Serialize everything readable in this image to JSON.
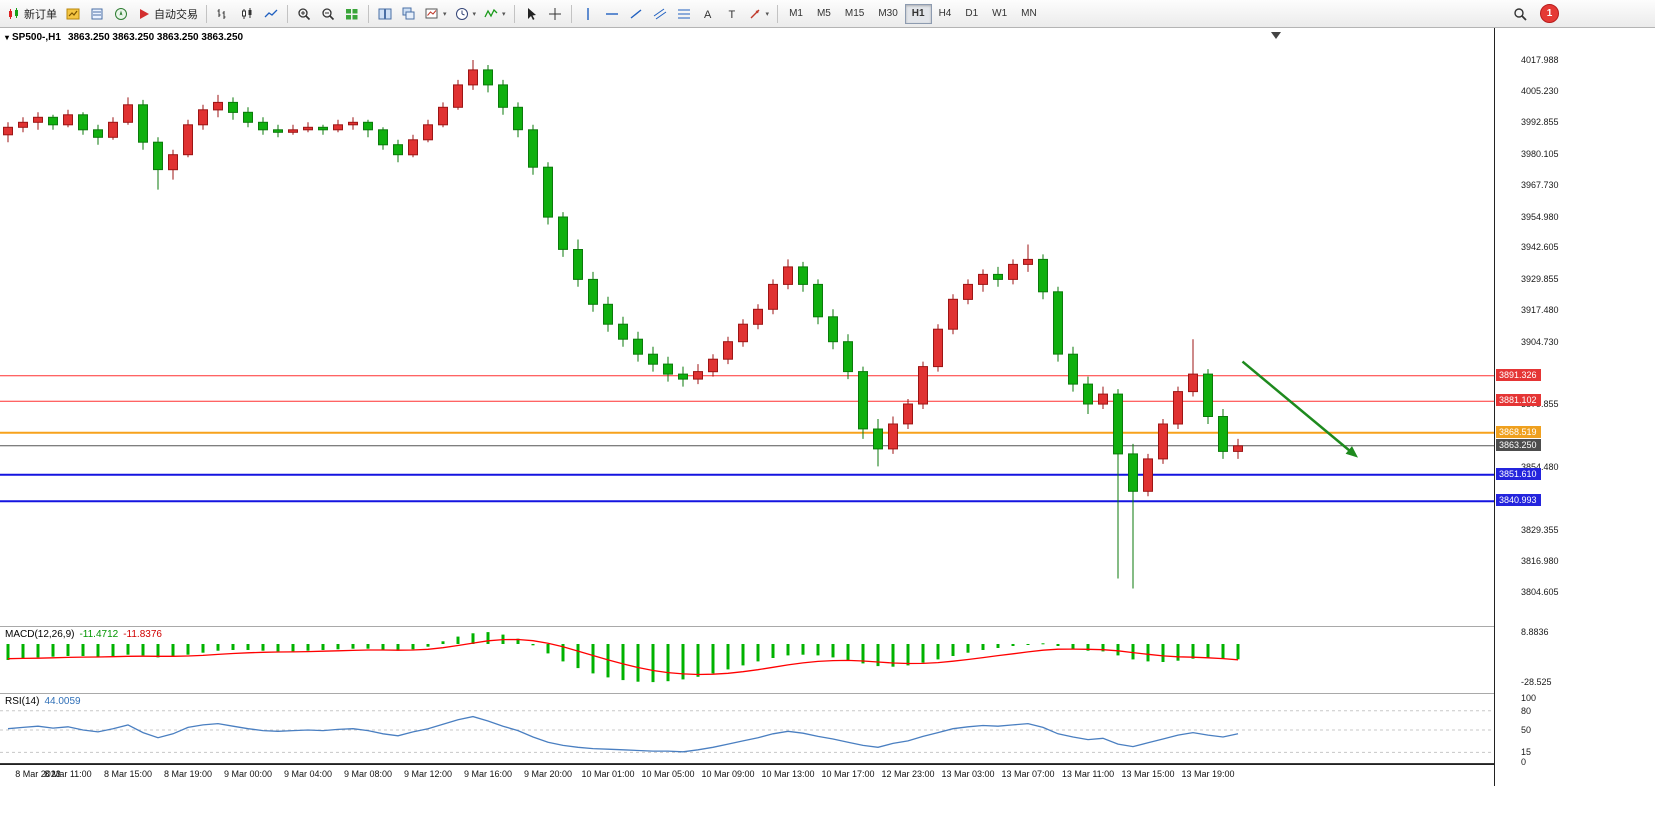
{
  "toolbar": {
    "groups": [
      {
        "items": [
          {
            "name": "new-order",
            "label": "新订单",
            "icon": "candles"
          },
          {
            "name": "market-watch",
            "icon": "market-watch"
          },
          {
            "name": "data-window",
            "icon": "data-window"
          },
          {
            "name": "navigator",
            "icon": "navigator"
          },
          {
            "name": "auto-trading",
            "label": "自动交易",
            "icon": "play"
          }
        ]
      },
      {
        "items": [
          {
            "name": "bar-chart",
            "icon": "bars"
          },
          {
            "name": "candlestick-chart",
            "icon": "candle"
          },
          {
            "name": "line-chart",
            "icon": "line"
          }
        ]
      },
      {
        "items": [
          {
            "name": "zoom-in",
            "icon": "zoom-in"
          },
          {
            "name": "zoom-out",
            "icon": "zoom-out"
          },
          {
            "name": "new-window",
            "icon": "grid"
          }
        ]
      },
      {
        "items": [
          {
            "name": "tile-windows",
            "icon": "tile"
          },
          {
            "name": "cascade-windows",
            "icon": "cascade"
          },
          {
            "name": "chart-template",
            "icon": "chart-caret",
            "caret": true
          },
          {
            "name": "period-selector",
            "icon": "clock",
            "caret": true
          },
          {
            "name": "indicators",
            "icon": "indicator",
            "caret": true
          }
        ]
      },
      {
        "items": [
          {
            "name": "cursor",
            "icon": "cursor"
          },
          {
            "name": "crosshair",
            "icon": "crosshair"
          }
        ]
      },
      {
        "items": [
          {
            "name": "vertical-line",
            "icon": "vline"
          },
          {
            "name": "horizontal-line",
            "icon": "hline"
          },
          {
            "name": "trendline",
            "icon": "trend"
          },
          {
            "name": "equidistant-channel",
            "icon": "channel"
          },
          {
            "name": "fibonacci",
            "icon": "fibo"
          },
          {
            "name": "text",
            "icon": "text"
          },
          {
            "name": "text-label",
            "icon": "label"
          },
          {
            "name": "shapes",
            "icon": "arrowshape",
            "caret": true
          }
        ]
      }
    ],
    "timeframes": [
      "M1",
      "M5",
      "M15",
      "M30",
      "H1",
      "H4",
      "D1",
      "W1",
      "MN"
    ],
    "active_timeframe": "H1",
    "notification_badge": "1"
  },
  "chart": {
    "symbol_period": "SP500-,H1",
    "ohlc": "3863.250 3863.250 3863.250 3863.250"
  },
  "chart_data": {
    "type": "candlestick",
    "symbol": "SP500-",
    "timeframe": "H1",
    "y_scale": {
      "p_top": 4017.988,
      "p_bottom": 3804.605
    },
    "price_axis_labels": [
      "4017.988",
      "4005.230",
      "3992.855",
      "3980.105",
      "3967.730",
      "3954.980",
      "3942.605",
      "3929.855",
      "3917.480",
      "3904.730",
      "3879.855",
      "3854.480",
      "3829.355",
      "3816.980",
      "3804.605"
    ],
    "price_badges": [
      {
        "text": "3891.326",
        "price": 3891.326,
        "bg": "#e53535",
        "line_color": "#ff3030",
        "line_width": 1
      },
      {
        "text": "3881.102",
        "price": 3881.102,
        "bg": "#e53535",
        "line_color": "#ff3030",
        "line_width": 1
      },
      {
        "text": "3868.519",
        "price": 3868.519,
        "bg": "#efa01e",
        "line_color": "#f7a21c",
        "line_width": 2
      },
      {
        "text": "3863.250",
        "price": 3863.25,
        "bg": "#4d4d4d",
        "line_color": "#555555",
        "line_width": 1
      },
      {
        "text": "3851.610",
        "price": 3851.61,
        "bg": "#2424dd",
        "line_color": "#1414e0",
        "line_width": 2
      },
      {
        "text": "3840.993",
        "price": 3840.993,
        "bg": "#2424dd",
        "line_color": "#1414e0",
        "line_width": 2
      }
    ],
    "candles": [
      [
        3988,
        3993,
        3985,
        3991
      ],
      [
        3991,
        3995,
        3989,
        3993
      ],
      [
        3993,
        3997,
        3990,
        3995
      ],
      [
        3995,
        3996,
        3990,
        3992
      ],
      [
        3992,
        3998,
        3991,
        3996
      ],
      [
        3996,
        3997,
        3988,
        3990
      ],
      [
        3990,
        3992,
        3984,
        3987
      ],
      [
        3987,
        3995,
        3986,
        3993
      ],
      [
        3993,
        4003,
        3992,
        4000
      ],
      [
        4000,
        4002,
        3982,
        3985
      ],
      [
        3985,
        3987,
        3966,
        3974
      ],
      [
        3974,
        3982,
        3970,
        3980
      ],
      [
        3980,
        3994,
        3979,
        3992
      ],
      [
        3992,
        4000,
        3990,
        3998
      ],
      [
        3998,
        4004,
        3995,
        4001
      ],
      [
        4001,
        4003,
        3994,
        3997
      ],
      [
        3997,
        3999,
        3991,
        3993
      ],
      [
        3993,
        3995,
        3988,
        3990
      ],
      [
        3990,
        3992,
        3987,
        3989
      ],
      [
        3989,
        3992,
        3988,
        3990
      ],
      [
        3990,
        3993,
        3989,
        3991
      ],
      [
        3991,
        3992,
        3988,
        3990
      ],
      [
        3990,
        3994,
        3989,
        3992
      ],
      [
        3992,
        3995,
        3990,
        3993
      ],
      [
        3993,
        3994,
        3987,
        3990
      ],
      [
        3990,
        3991,
        3982,
        3984
      ],
      [
        3984,
        3986,
        3977,
        3980
      ],
      [
        3980,
        3988,
        3979,
        3986
      ],
      [
        3986,
        3994,
        3985,
        3992
      ],
      [
        3992,
        4001,
        3991,
        3999
      ],
      [
        3999,
        4010,
        3998,
        4008
      ],
      [
        4008,
        4018,
        4006,
        4014
      ],
      [
        4014,
        4016,
        4005,
        4008
      ],
      [
        4008,
        4010,
        3996,
        3999
      ],
      [
        3999,
        4001,
        3987,
        3990
      ],
      [
        3990,
        3992,
        3972,
        3975
      ],
      [
        3975,
        3977,
        3952,
        3955
      ],
      [
        3955,
        3957,
        3939,
        3942
      ],
      [
        3942,
        3946,
        3927,
        3930
      ],
      [
        3930,
        3933,
        3917,
        3920
      ],
      [
        3920,
        3923,
        3909,
        3912
      ],
      [
        3912,
        3915,
        3903,
        3906
      ],
      [
        3906,
        3909,
        3897,
        3900
      ],
      [
        3900,
        3903,
        3893,
        3896
      ],
      [
        3896,
        3899,
        3889,
        3892
      ],
      [
        3892,
        3895,
        3887,
        3890
      ],
      [
        3890,
        3896,
        3888,
        3893
      ],
      [
        3893,
        3900,
        3891,
        3898
      ],
      [
        3898,
        3907,
        3896,
        3905
      ],
      [
        3905,
        3914,
        3903,
        3912
      ],
      [
        3912,
        3920,
        3910,
        3918
      ],
      [
        3918,
        3930,
        3916,
        3928
      ],
      [
        3928,
        3938,
        3926,
        3935
      ],
      [
        3935,
        3937,
        3925,
        3928
      ],
      [
        3928,
        3930,
        3912,
        3915
      ],
      [
        3915,
        3918,
        3902,
        3905
      ],
      [
        3905,
        3908,
        3890,
        3893
      ],
      [
        3893,
        3895,
        3866,
        3870
      ],
      [
        3870,
        3874,
        3855,
        3862
      ],
      [
        3862,
        3875,
        3860,
        3872
      ],
      [
        3872,
        3882,
        3870,
        3880
      ],
      [
        3880,
        3897,
        3878,
        3895
      ],
      [
        3895,
        3912,
        3893,
        3910
      ],
      [
        3910,
        3924,
        3908,
        3922
      ],
      [
        3922,
        3930,
        3920,
        3928
      ],
      [
        3928,
        3934,
        3925,
        3932
      ],
      [
        3932,
        3935,
        3927,
        3930
      ],
      [
        3930,
        3938,
        3928,
        3936
      ],
      [
        3936,
        3944,
        3933,
        3938
      ],
      [
        3938,
        3940,
        3922,
        3925
      ],
      [
        3925,
        3927,
        3897,
        3900
      ],
      [
        3900,
        3903,
        3885,
        3888
      ],
      [
        3888,
        3891,
        3876,
        3880
      ],
      [
        3880,
        3887,
        3878,
        3884
      ],
      [
        3884,
        3886,
        3810,
        3860
      ],
      [
        3860,
        3864,
        3806,
        3845
      ],
      [
        3845,
        3860,
        3843,
        3858
      ],
      [
        3858,
        3874,
        3856,
        3872
      ],
      [
        3872,
        3887,
        3870,
        3885
      ],
      [
        3885,
        3906,
        3883,
        3892
      ],
      [
        3892,
        3894,
        3872,
        3875
      ],
      [
        3875,
        3878,
        3858,
        3861
      ],
      [
        3861,
        3866,
        3858,
        3863.25
      ]
    ],
    "time_labels": [
      {
        "i": 0,
        "t": "8 Mar 2023"
      },
      {
        "i": 4,
        "t": "8 Mar 11:00"
      },
      {
        "i": 8,
        "t": "8 Mar 15:00"
      },
      {
        "i": 12,
        "t": "8 Mar 19:00"
      },
      {
        "i": 16,
        "t": "9 Mar 00:00"
      },
      {
        "i": 20,
        "t": "9 Mar 04:00"
      },
      {
        "i": 24,
        "t": "9 Mar 08:00"
      },
      {
        "i": 28,
        "t": "9 Mar 12:00"
      },
      {
        "i": 32,
        "t": "9 Mar 16:00"
      },
      {
        "i": 36,
        "t": "9 Mar 20:00"
      },
      {
        "i": 40,
        "t": "10 Mar 01:00"
      },
      {
        "i": 44,
        "t": "10 Mar 05:00"
      },
      {
        "i": 48,
        "t": "10 Mar 09:00"
      },
      {
        "i": 52,
        "t": "10 Mar 13:00"
      },
      {
        "i": 56,
        "t": "10 Mar 17:00"
      },
      {
        "i": 60,
        "t": "12 Mar 23:00"
      },
      {
        "i": 64,
        "t": "13 Mar 03:00"
      },
      {
        "i": 68,
        "t": "13 Mar 07:00"
      },
      {
        "i": 72,
        "t": "13 Mar 11:00"
      },
      {
        "i": 76,
        "t": "13 Mar 15:00"
      },
      {
        "i": 80,
        "t": "13 Mar 19:00"
      }
    ],
    "annotation_arrow": {
      "from_i": 82.3,
      "from_price": 3897,
      "to_i": 90,
      "to_price": 3858.5,
      "color": "#1e8a1e"
    },
    "macd": {
      "label": "MACD(12,26,9)",
      "main_value": "-11.4712",
      "signal_value": "-11.8376",
      "scale_max": "8.8836",
      "scale_min": "-28.525",
      "main": [
        -12,
        -11,
        -10,
        -9.5,
        -9,
        -9,
        -9.5,
        -9,
        -8,
        -8.5,
        -10,
        -9.5,
        -8,
        -6.5,
        -5,
        -4.5,
        -4.5,
        -5,
        -5.5,
        -5.5,
        -5,
        -4.5,
        -4,
        -3.5,
        -3.5,
        -4.5,
        -5,
        -4,
        -2,
        2,
        5.5,
        8,
        8.8836,
        7,
        4,
        -1,
        -7,
        -13,
        -18,
        -22,
        -25,
        -27,
        -28.2,
        -28.525,
        -27.8,
        -26.5,
        -24.5,
        -22,
        -19,
        -16,
        -13,
        -10.5,
        -8.5,
        -8,
        -8.5,
        -10,
        -12,
        -14.5,
        -16.5,
        -17,
        -16,
        -14,
        -11.5,
        -9,
        -6.5,
        -4.5,
        -3,
        -1.5,
        -0.5,
        0.5,
        -1.5,
        -3.5,
        -5,
        -5.5,
        -8.5,
        -11.5,
        -13,
        -13.5,
        -12.5,
        -11,
        -10.5,
        -11,
        -11.4712
      ],
      "signal": [
        -11,
        -10.8,
        -10.6,
        -10.3,
        -10,
        -9.8,
        -9.7,
        -9.5,
        -9.2,
        -9.1,
        -9.2,
        -9.2,
        -9,
        -8.5,
        -7.8,
        -7.1,
        -6.6,
        -6.2,
        -6,
        -5.9,
        -5.7,
        -5.4,
        -5.1,
        -4.8,
        -4.5,
        -4.5,
        -4.6,
        -4.5,
        -4,
        -2.8,
        -1.1,
        0.7,
        2.4,
        3.3,
        3.4,
        2.5,
        0.6,
        -2.1,
        -5.3,
        -8.6,
        -11.9,
        -14.9,
        -17.6,
        -19.8,
        -21.4,
        -22.4,
        -22.8,
        -22.6,
        -21.9,
        -20.7,
        -19.2,
        -17.4,
        -15.6,
        -14.1,
        -13,
        -12.4,
        -12.3,
        -12.7,
        -13.5,
        -14.2,
        -14.6,
        -14.5,
        -13.9,
        -12.9,
        -11.6,
        -10.2,
        -8.7,
        -7.3,
        -5.9,
        -4.6,
        -3.9,
        -3.8,
        -4,
        -4.3,
        -5.1,
        -6.4,
        -7.7,
        -8.9,
        -9.6,
        -9.9,
        -10.3,
        -10.9,
        -11.8376
      ]
    },
    "rsi": {
      "label": "RSI(14)",
      "value": "44.0059",
      "levels": [
        "100",
        "80",
        "50",
        "15",
        "0"
      ],
      "level_lines": [
        80,
        50,
        15
      ],
      "values": [
        52,
        54,
        56,
        53,
        55,
        50,
        47,
        52,
        58,
        46,
        38,
        44,
        54,
        58,
        60,
        56,
        52,
        49,
        48,
        49,
        50,
        49,
        51,
        52,
        49,
        44,
        41,
        47,
        52,
        59,
        66,
        71,
        64,
        56,
        49,
        39,
        31,
        26,
        23,
        21,
        20,
        19,
        18,
        17,
        17,
        16,
        19,
        23,
        28,
        33,
        38,
        44,
        48,
        45,
        40,
        36,
        31,
        26,
        23,
        29,
        33,
        40,
        46,
        52,
        55,
        57,
        56,
        58,
        60,
        54,
        44,
        39,
        35,
        37,
        28,
        24,
        30,
        36,
        42,
        46,
        42,
        39,
        44.0059
      ]
    },
    "colors": {
      "up": "#e03232",
      "down": "#0fb00f",
      "up_border": "#9c1515",
      "down_border": "#0b7a0b",
      "macd_hist": "#00b200",
      "macd_signal": "#ff0000",
      "rsi_line": "#4a7fc1"
    }
  }
}
